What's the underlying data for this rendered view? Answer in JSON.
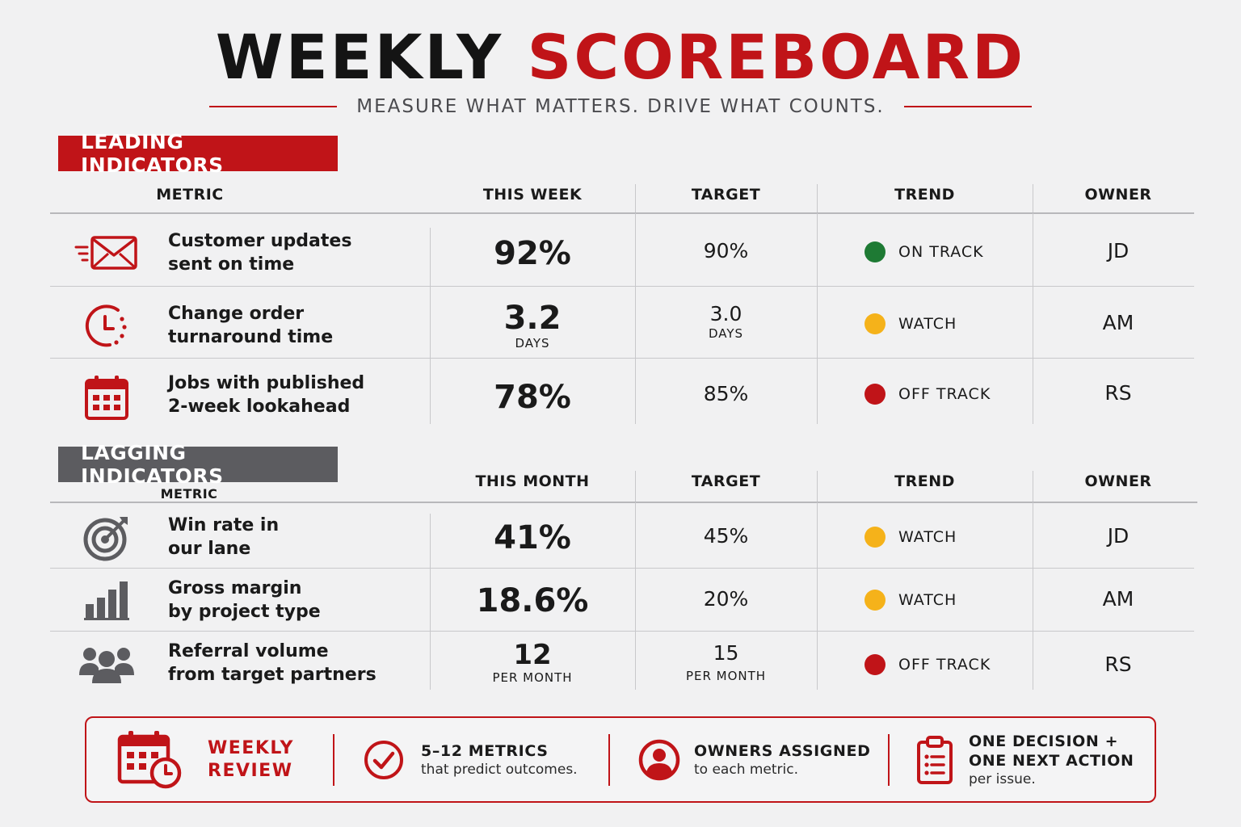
{
  "title_part1": "WEEKLY",
  "title_part2": "SCOREBOARD",
  "subtitle": "MEASURE WHAT MATTERS. DRIVE WHAT COUNTS.",
  "colors": {
    "accent": "#c01418",
    "on_track": "#1e7a34",
    "watch": "#f5b21a",
    "off_track": "#c01418",
    "lagging_tag": "#5c5c60"
  },
  "leading": {
    "tag": "LEADING INDICATORS",
    "headers": {
      "metric": "METRIC",
      "value": "THIS WEEK",
      "target": "TARGET",
      "trend": "TREND",
      "owner": "OWNER"
    },
    "rows": [
      {
        "icon": "envelope-fast-icon",
        "metric_line1": "Customer updates",
        "metric_line2": "sent on time",
        "value": "92%",
        "value_unit": "",
        "target": "90%",
        "target_unit": "",
        "trend": "ON TRACK",
        "trend_status": "on_track",
        "owner": "JD"
      },
      {
        "icon": "clock-icon",
        "metric_line1": "Change order",
        "metric_line2": "turnaround time",
        "value": "3.2",
        "value_unit": "DAYS",
        "target": "3.0",
        "target_unit": "DAYS",
        "trend": "WATCH",
        "trend_status": "watch",
        "owner": "AM"
      },
      {
        "icon": "calendar-icon",
        "metric_line1": "Jobs with published",
        "metric_line2": "2-week lookahead",
        "value": "78%",
        "value_unit": "",
        "target": "85%",
        "target_unit": "",
        "trend": "OFF TRACK",
        "trend_status": "off_track",
        "owner": "RS"
      }
    ]
  },
  "lagging": {
    "tag": "LAGGING INDICATORS",
    "headers": {
      "metric": "METRIC",
      "value": "THIS MONTH",
      "target": "TARGET",
      "trend": "TREND",
      "owner": "OWNER"
    },
    "rows": [
      {
        "icon": "target-icon",
        "metric_line1": "Win rate in",
        "metric_line2": "our lane",
        "value": "41%",
        "value_unit": "",
        "target": "45%",
        "target_unit": "",
        "trend": "WATCH",
        "trend_status": "watch",
        "owner": "JD"
      },
      {
        "icon": "bar-chart-icon",
        "metric_line1": "Gross margin",
        "metric_line2": "by project type",
        "value": "18.6%",
        "value_unit": "",
        "target": "20%",
        "target_unit": "",
        "trend": "WATCH",
        "trend_status": "watch",
        "owner": "AM"
      },
      {
        "icon": "people-group-icon",
        "metric_line1": "Referral volume",
        "metric_line2": "from target partners",
        "value": "12",
        "value_unit": "PER MONTH",
        "target": "15",
        "target_unit": "PER MONTH",
        "trend": "OFF TRACK",
        "trend_status": "off_track",
        "owner": "RS"
      }
    ]
  },
  "footer": {
    "weekly_review_line1": "WEEKLY",
    "weekly_review_line2": "REVIEW",
    "item1_title": "5–12 METRICS",
    "item1_sub": "that predict outcomes.",
    "item2_title": "OWNERS ASSIGNED",
    "item2_sub": "to each metric.",
    "item3_title_line1": "ONE DECISION +",
    "item3_title_line2": "ONE NEXT ACTION",
    "item3_sub": "per issue."
  }
}
